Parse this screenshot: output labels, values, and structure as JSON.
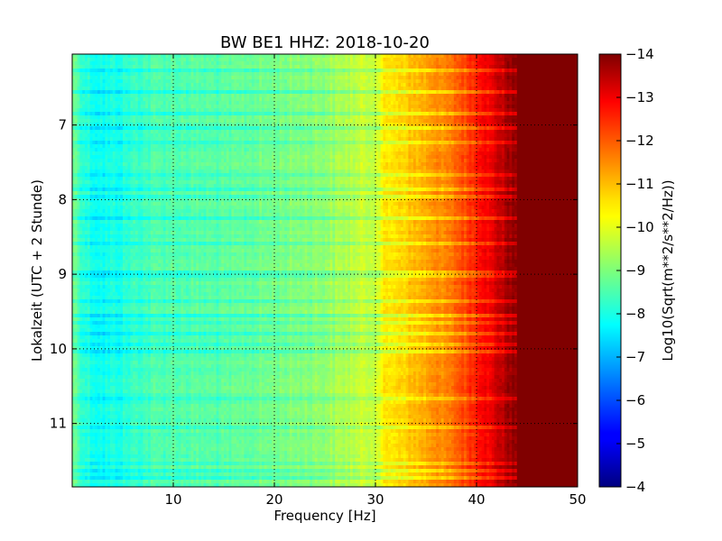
{
  "chart_data": {
    "type": "heatmap",
    "title": "BW BE1 HHZ: 2018-10-20",
    "xlabel": "Frequency [Hz]",
    "ylabel": "Lokalzeit (UTC + 2 Stunde)",
    "xlim": [
      0,
      50
    ],
    "ylim": [
      6.05,
      11.85
    ],
    "y_inverted": true,
    "x_ticks": [
      10,
      20,
      30,
      40,
      50
    ],
    "y_ticks": [
      7,
      8,
      9,
      10,
      11
    ],
    "grid": true,
    "colormap": "jet",
    "colorbar": {
      "label": "Log10(Sqrt(m**2/s**2/Hz))",
      "range": [
        -14,
        -4
      ],
      "ticks": [
        -4,
        -5,
        -6,
        -7,
        -8,
        -9,
        -10,
        -11,
        -12,
        -13,
        -14
      ]
    },
    "spectrum_profile": {
      "frequency_hz": [
        0,
        1,
        2,
        3,
        4,
        5,
        6,
        8,
        10,
        12,
        15,
        18,
        20,
        25,
        28,
        30,
        31,
        32,
        34,
        36,
        38,
        40,
        42,
        43,
        44,
        46,
        50
      ],
      "log10_amplitude": [
        -9.0,
        -8.3,
        -8.0,
        -7.9,
        -8.0,
        -8.1,
        -8.3,
        -8.5,
        -8.6,
        -8.6,
        -8.6,
        -8.8,
        -8.9,
        -9.2,
        -9.6,
        -9.8,
        -10.4,
        -10.6,
        -10.9,
        -11.3,
        -11.8,
        -12.4,
        -13.2,
        -13.6,
        -14.0,
        -14.0,
        -14.0
      ]
    },
    "high_noise_bands_hour": [
      6.25,
      6.55,
      6.85,
      7.05,
      7.25,
      7.65,
      7.85,
      7.95,
      8.25,
      8.6,
      9.0,
      9.35,
      9.55,
      9.65,
      9.8,
      9.95,
      10.05,
      10.65,
      11.05,
      11.55,
      11.65,
      11.72
    ]
  }
}
